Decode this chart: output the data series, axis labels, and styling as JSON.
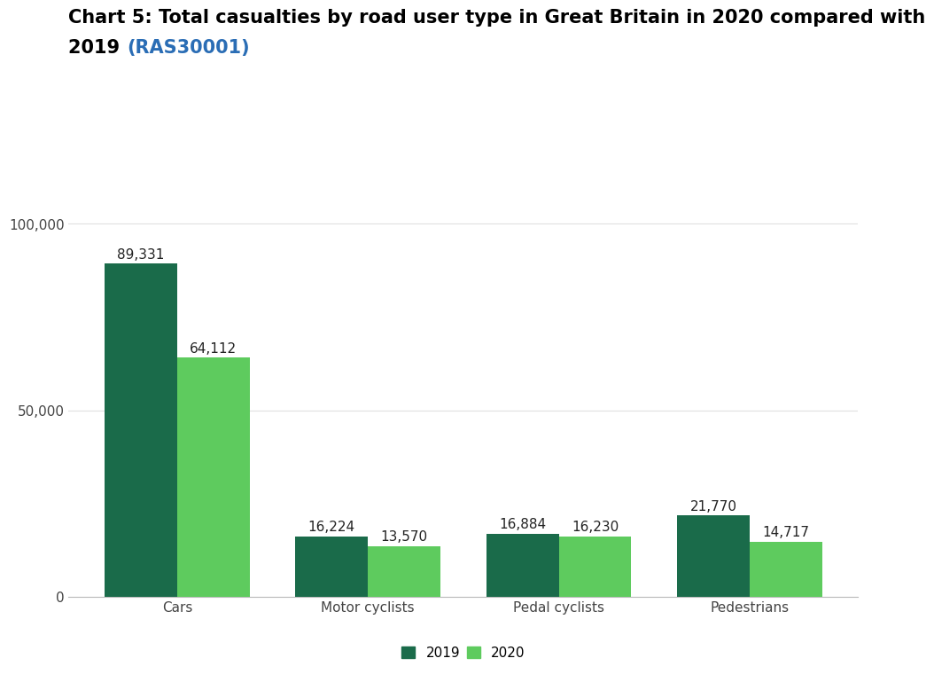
{
  "title_line1": "Chart 5: Total casualties by road user type in Great Britain in 2020 compared with",
  "title_line2_black": "2019 ",
  "title_line2_blue": "(RAS30001)",
  "categories": [
    "Cars",
    "Motor cyclists",
    "Pedal cyclists",
    "Pedestrians"
  ],
  "values_2019": [
    89331,
    16224,
    16884,
    21770
  ],
  "values_2020": [
    64112,
    13570,
    16230,
    14717
  ],
  "labels_2019": [
    "89,331",
    "16,224",
    "16,884",
    "21,770"
  ],
  "labels_2020": [
    "64,112",
    "13,570",
    "16,230",
    "14,717"
  ],
  "color_2019": "#1a6b4a",
  "color_2020": "#5ecb5e",
  "yticks": [
    0,
    50000,
    100000
  ],
  "ytick_labels": [
    "0",
    "50,000",
    "100,000"
  ],
  "ylim": [
    0,
    112000
  ],
  "background_color": "#ffffff",
  "bar_width": 0.38,
  "title_fontsize": 15,
  "label_fontsize": 11,
  "tick_fontsize": 11,
  "legend_fontsize": 11,
  "link_color": "#2a6db5"
}
